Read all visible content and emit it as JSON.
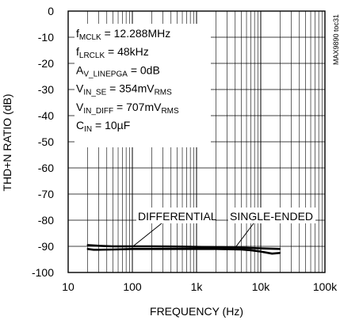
{
  "chart_data": {
    "type": "line",
    "title": "",
    "xlabel": "FREQUENCY (Hz)",
    "ylabel": "THD+N RATIO (dB)",
    "x_scale": "log",
    "xlim": [
      10,
      100000
    ],
    "ylim": [
      -100,
      0
    ],
    "x_tick_labels": [
      "10",
      "100",
      "1k",
      "10k",
      "100k"
    ],
    "y_tick_labels": [
      "0",
      "-10",
      "-20",
      "-30",
      "-40",
      "-50",
      "-60",
      "-70",
      "-80",
      "-90",
      "-100"
    ],
    "grid": true,
    "series": [
      {
        "name": "DIFFERENTIAL",
        "x": [
          20,
          30,
          50,
          100,
          200,
          500,
          1000,
          2000,
          5000,
          10000,
          20000
        ],
        "y": [
          -89.5,
          -89.8,
          -90.0,
          -90.0,
          -90.0,
          -90.1,
          -90.2,
          -90.3,
          -90.5,
          -90.8,
          -91.0
        ]
      },
      {
        "name": "SINGLE-ENDED",
        "x": [
          20,
          25,
          30,
          50,
          100,
          200,
          500,
          1000,
          2000,
          5000,
          7000,
          10000,
          15000,
          20000
        ],
        "y": [
          -91.0,
          -91.3,
          -91.3,
          -91.2,
          -91.0,
          -91.0,
          -91.0,
          -91.0,
          -91.0,
          -91.2,
          -91.5,
          -92.0,
          -92.8,
          -92.5
        ]
      }
    ],
    "conditions": [
      {
        "base": "f",
        "sub": "MCLK",
        "rest": " = 12.288MHz"
      },
      {
        "base": "f",
        "sub": "LRCLK",
        "rest": " = 48kHz"
      },
      {
        "base": "A",
        "sub": "V_LINEPGA",
        "rest": " = 0dB"
      },
      {
        "base": "V",
        "sub": "IN_SE",
        "rest": " = 354mV",
        "sub2": "RMS"
      },
      {
        "base": "V",
        "sub": "IN_DIFF",
        "rest": " = 707mV",
        "sub2": "RMS"
      },
      {
        "base": "C",
        "sub": "IN",
        "rest": " = 10µF"
      }
    ],
    "annotations": [
      "DIFFERENTIAL",
      "SINGLE-ENDED"
    ],
    "figure_code": "MAX9890 toc31"
  }
}
